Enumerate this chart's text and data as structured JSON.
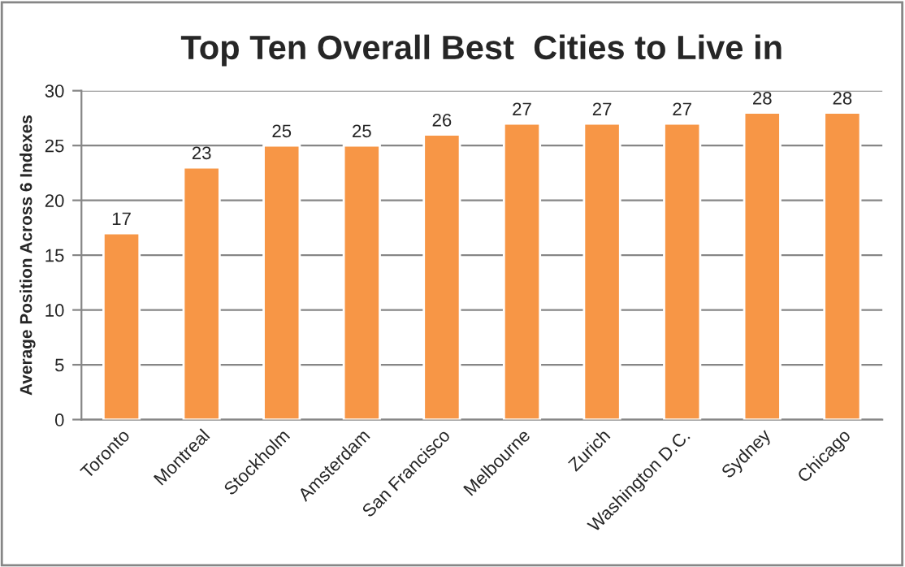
{
  "chart_data": {
    "type": "bar",
    "title": "Top Ten Overall Best  Cities to Live in",
    "ylabel": "Average Position Across 6 Indexes",
    "categories": [
      "Toronto",
      "Montreal",
      "Stockholm",
      "Amsterdam",
      "San Francisco",
      "Melbourne",
      "Zurich",
      "Washington D.C.",
      "Sydney",
      "Chicago"
    ],
    "values": [
      17,
      23,
      25,
      25,
      26,
      27,
      27,
      27,
      28,
      28
    ],
    "color": "#f79646",
    "ylim": [
      0,
      30
    ],
    "yticks": [
      0,
      5,
      10,
      15,
      20,
      25,
      30
    ],
    "grid": "y",
    "data_labels": true
  }
}
